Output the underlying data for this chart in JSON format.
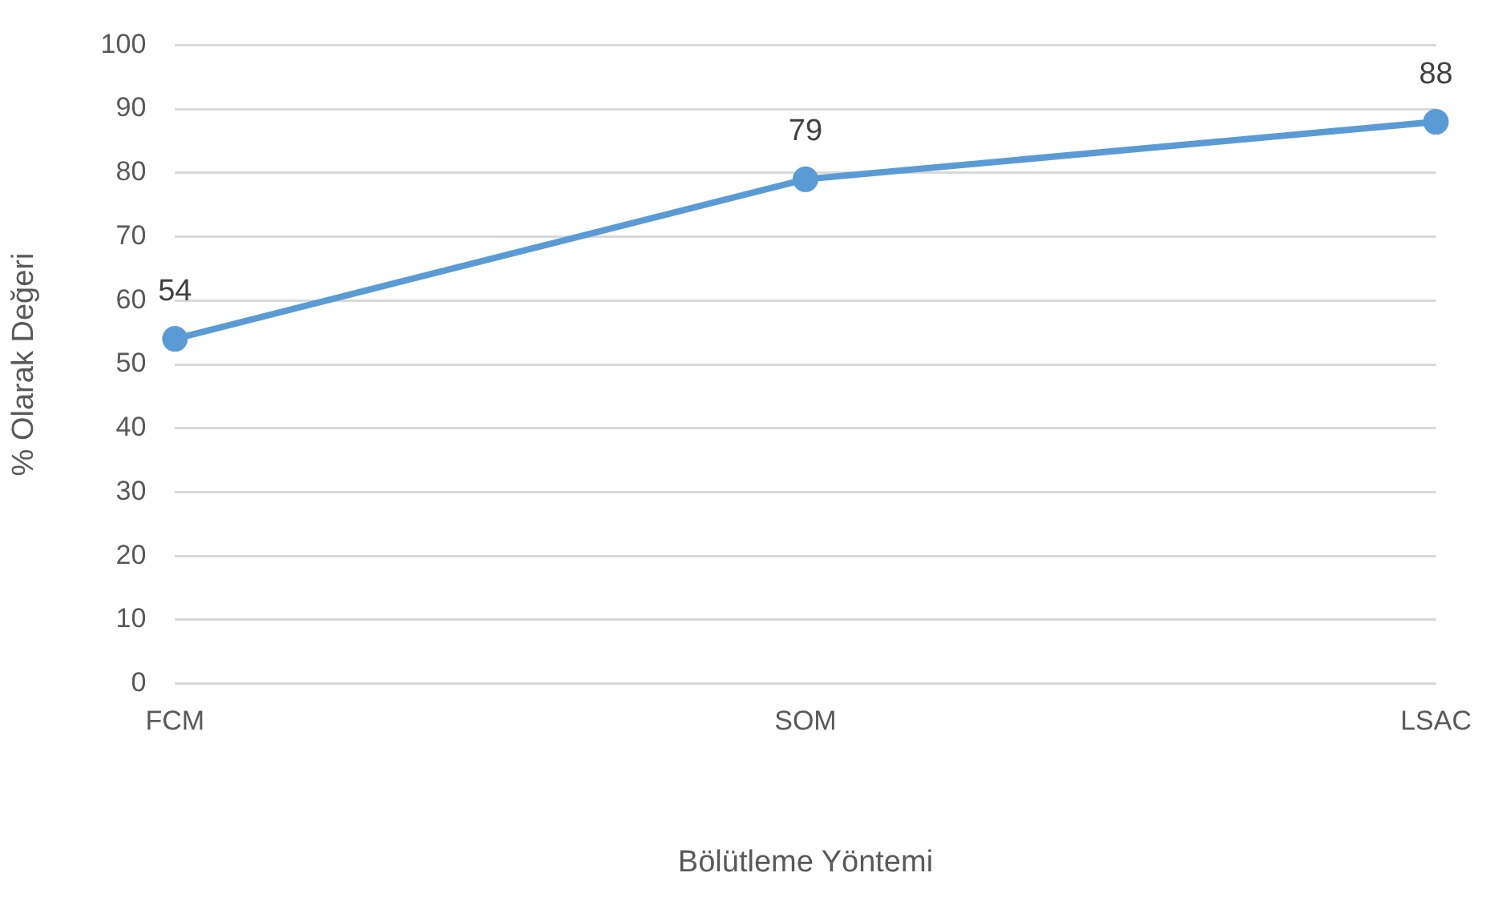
{
  "chart_data": {
    "type": "line",
    "xlabel": "Bölütleme Yöntemi",
    "ylabel": "% Olarak Değeri",
    "categories": [
      "FCM",
      "SOM",
      "LSAC"
    ],
    "series": [
      {
        "color": "#5b9bd5",
        "values": [
          54,
          79,
          88
        ]
      }
    ],
    "ylim": [
      0,
      100
    ],
    "yticks": [
      0,
      10,
      20,
      30,
      40,
      50,
      60,
      70,
      80,
      90,
      100
    ],
    "grid": "y",
    "legend": false,
    "marker": "circle",
    "line_style": "solid",
    "data_labels": true
  }
}
